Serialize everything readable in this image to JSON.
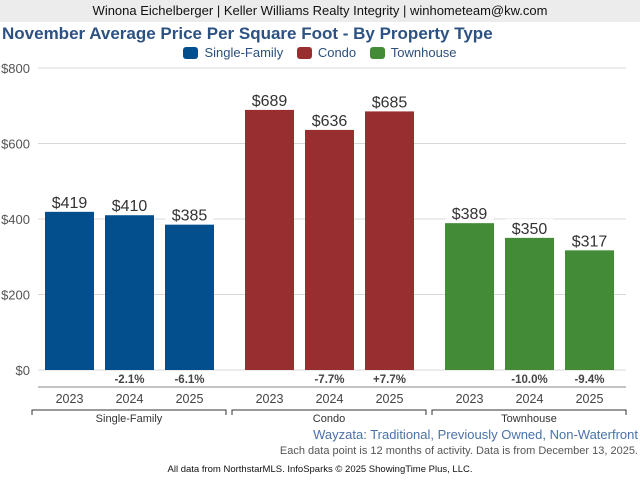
{
  "header": {
    "agent_line": "Winona Eichelberger | Keller Williams Realty Integrity | winhometeam@kw.com"
  },
  "chart_data": {
    "type": "bar",
    "title": "November Average Price Per Square Foot - By Property Type",
    "xlabel": "",
    "ylabel": "",
    "ylim": [
      0,
      800
    ],
    "yticks": [
      0,
      200,
      400,
      600,
      800
    ],
    "ytick_labels": [
      "$0",
      "$200",
      "$400",
      "$600",
      "$800"
    ],
    "grid": true,
    "legend_position": "top-center",
    "legend": [
      {
        "name": "Single-Family",
        "color": "#034e8c"
      },
      {
        "name": "Condo",
        "color": "#992e31"
      },
      {
        "name": "Townhouse",
        "color": "#438b37"
      }
    ],
    "categories": [
      "2023",
      "2024",
      "2025"
    ],
    "groups": [
      {
        "name": "Single-Family",
        "color": "#034e8c",
        "values": [
          419,
          410,
          385
        ],
        "value_labels": [
          "$419",
          "$410",
          "$385"
        ],
        "changes": [
          "",
          "-2.1%",
          "-6.1%"
        ]
      },
      {
        "name": "Condo",
        "color": "#992e31",
        "values": [
          689,
          636,
          685
        ],
        "value_labels": [
          "$689",
          "$636",
          "$685"
        ],
        "changes": [
          "",
          "-7.7%",
          "+7.7%"
        ]
      },
      {
        "name": "Townhouse",
        "color": "#438b37",
        "values": [
          389,
          350,
          317
        ],
        "value_labels": [
          "$389",
          "$350",
          "$317"
        ],
        "changes": [
          "",
          "-10.0%",
          "-9.4%"
        ]
      }
    ]
  },
  "notes": {
    "area_filter": "Wayzata: Traditional, Previously Owned, Non-Waterfront",
    "data_note": "Each data point is 12 months of activity. Data is from December 13, 2025."
  },
  "footer": {
    "source": "All data from NorthstarMLS. InfoSparks © 2025 ShowingTime Plus, LLC."
  }
}
